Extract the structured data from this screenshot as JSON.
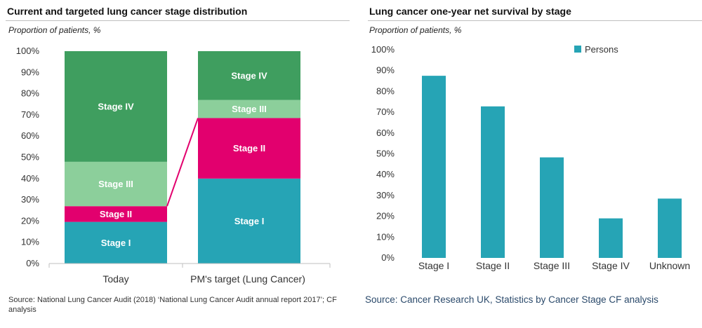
{
  "left": {
    "title": "Current and targeted lung cancer stage distribution",
    "subtitle": "Proportion of patients, %",
    "source": "Source: National Lung Cancer Audit (2018) ‘National Lung Cancer Audit annual report 2017’; CF analysis"
  },
  "right": {
    "title": "Lung cancer one-year net survival by stage",
    "subtitle": "Proportion of patients, %",
    "source": "Source: Cancer Research UK, Statistics by Cancer Stage CF analysis"
  },
  "colors": {
    "stage_i": "#26a4b5",
    "stage_ii": "#e2006e",
    "stage_iii": "#8ccf9b",
    "stage_iv": "#3f9e5f",
    "persons": "#26a4b5",
    "connector": "#e2006e"
  },
  "chart_data": [
    {
      "type": "bar",
      "stacked": true,
      "title": "Current and targeted lung cancer stage distribution",
      "ylabel": "Proportion of patients, %",
      "categories": [
        "Today",
        "PM's target (Lung Cancer)"
      ],
      "ylim": [
        0,
        100
      ],
      "yticks": [
        "0%",
        "10%",
        "20%",
        "30%",
        "40%",
        "50%",
        "60%",
        "70%",
        "80%",
        "90%",
        "100%"
      ],
      "series": [
        {
          "name": "Stage I",
          "values": [
            19.6,
            40
          ]
        },
        {
          "name": "Stage II",
          "values": [
            7.4,
            28.5
          ]
        },
        {
          "name": "Stage III",
          "values": [
            20.9,
            8.5
          ]
        },
        {
          "name": "Stage IV",
          "values": [
            52.1,
            23
          ]
        }
      ],
      "connector": {
        "from": "Today top of Stage II",
        "to": "PM's target top of Stage II"
      }
    },
    {
      "type": "bar",
      "title": "Lung cancer one-year net survival by stage",
      "ylabel": "Proportion of patients, %",
      "categories": [
        "Stage I",
        "Stage II",
        "Stage III",
        "Stage IV",
        "Unknown"
      ],
      "ylim": [
        0,
        100
      ],
      "yticks": [
        "0%",
        "10%",
        "20%",
        "30%",
        "40%",
        "50%",
        "60%",
        "70%",
        "80%",
        "90%",
        "100%"
      ],
      "series": [
        {
          "name": "Persons",
          "values": [
            87.5,
            72.8,
            48.3,
            19,
            28.5
          ]
        }
      ],
      "legend": "top-right"
    }
  ]
}
